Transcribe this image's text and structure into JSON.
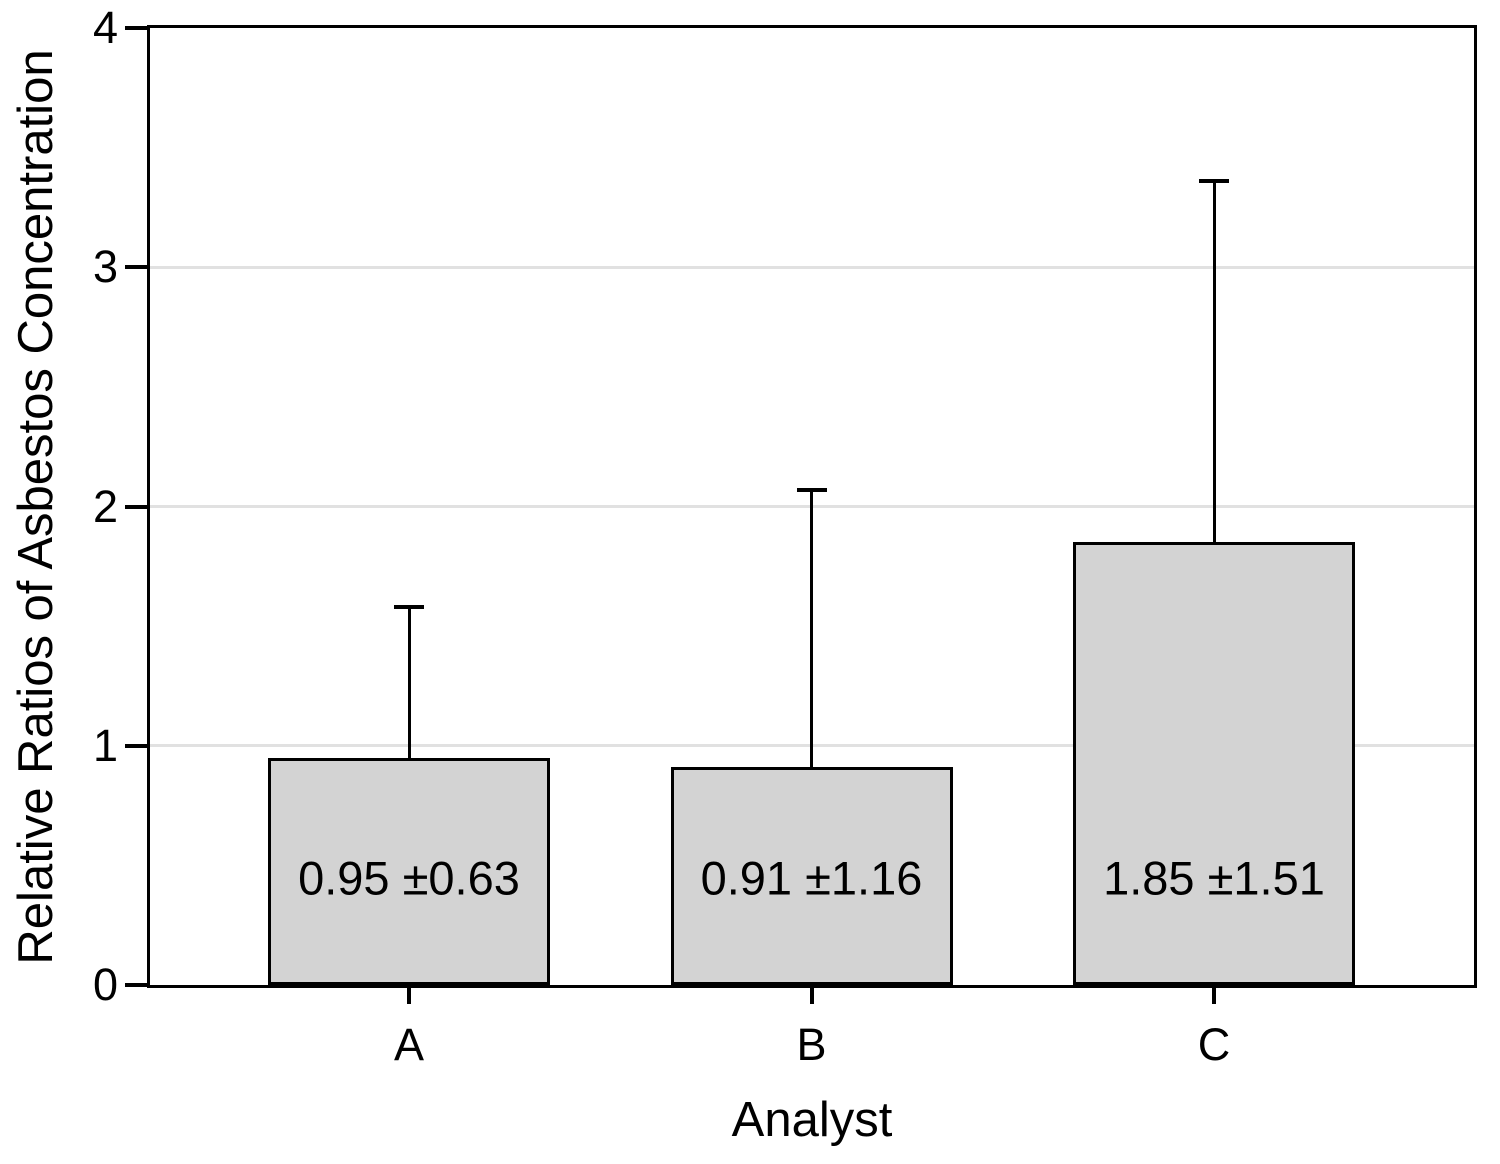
{
  "chart_data": {
    "type": "bar",
    "title": "",
    "xlabel": "Analyst",
    "ylabel": "Relative Ratios of Asbestos Concentration",
    "categories": [
      "A",
      "B",
      "C"
    ],
    "values": [
      0.95,
      0.91,
      1.85
    ],
    "errors": [
      0.63,
      1.16,
      1.51
    ],
    "bar_labels": [
      "0.95 ±0.63",
      "0.91 ±1.16",
      "1.85 ±1.51"
    ],
    "ylim": [
      0,
      4
    ],
    "yticks": [
      0,
      1,
      2,
      3,
      4
    ],
    "ytick_labels": [
      "0",
      "1",
      "2",
      "3",
      "4"
    ],
    "grid": true,
    "legend": "none",
    "colors": {
      "bar_fill": "#d3d3d3",
      "bar_border": "#000000",
      "error_bar": "#000000",
      "gridline": "#e1e1e1",
      "axis": "#000000",
      "text": "#000000",
      "background": "#ffffff"
    }
  }
}
